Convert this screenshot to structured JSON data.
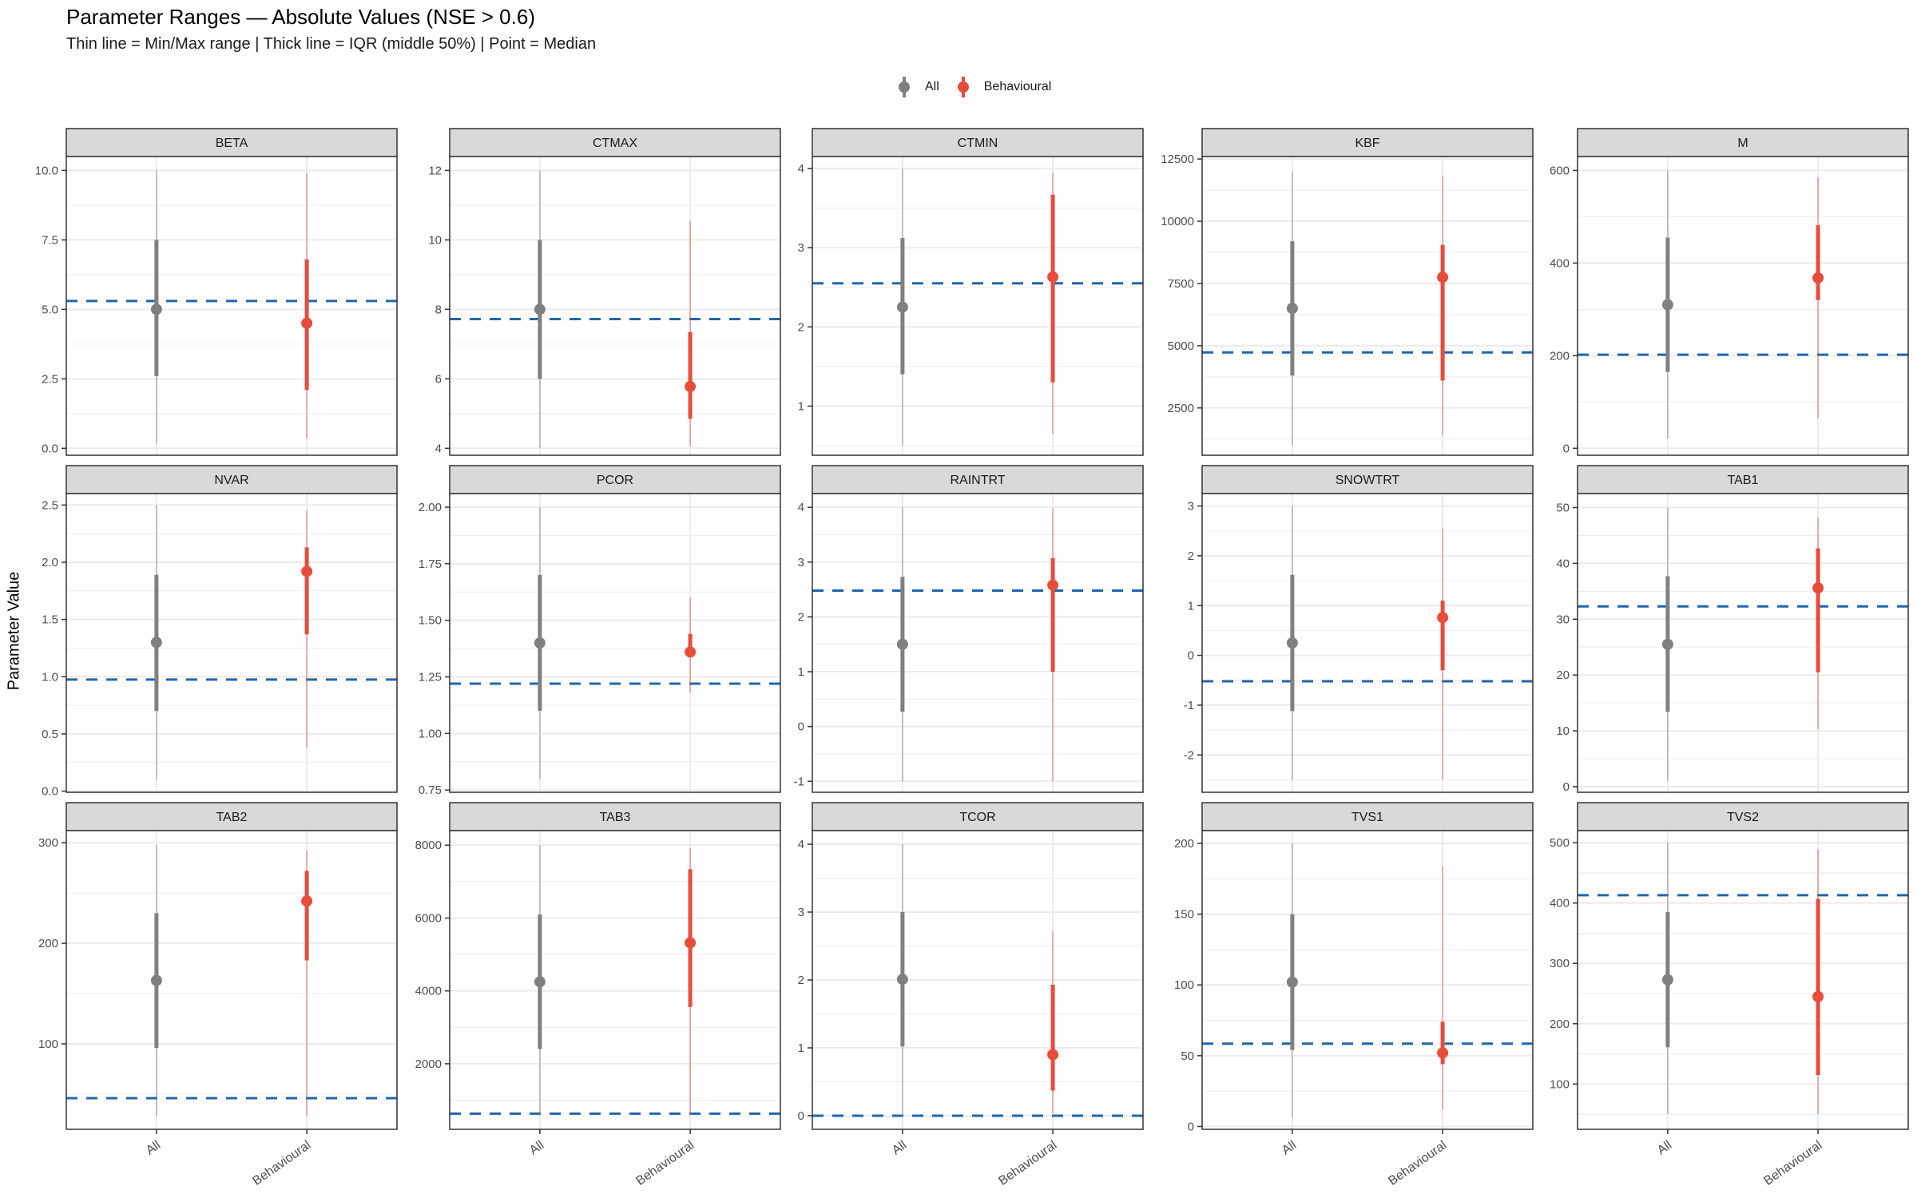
{
  "chart_data": {
    "type": "range-dot",
    "title": "Parameter Ranges — Absolute Values (NSE > 0.6)",
    "subtitle": "Thin line = Min/Max range | Thick line = IQR (middle 50%) | Point = Median",
    "ylabel": "Parameter Value",
    "xlabel": "",
    "categories": [
      "All",
      "Behavioural"
    ],
    "legend": {
      "position": "top",
      "entries": [
        {
          "label": "All",
          "color": "#808080"
        },
        {
          "label": "Behavioural",
          "color": "#E74C3C"
        }
      ]
    },
    "colors": {
      "All": "#808080",
      "Behavioural": "#E74C3C",
      "reference": "#2166AC",
      "strip": "#D9D9D9",
      "grid": "#EBEBEB"
    },
    "grid": true,
    "reference_line": "dashed",
    "panels": [
      {
        "name": "BETA",
        "ylim": [
          -0.25,
          10.5
        ],
        "ticks": [
          0,
          2.5,
          5,
          7.5,
          10
        ],
        "tick_labels": [
          "0.0",
          "2.5",
          "5.0",
          "7.5",
          "10.0"
        ],
        "reference": 5.3,
        "series": {
          "All": {
            "min": 0.15,
            "q1": 2.6,
            "median": 5.0,
            "q3": 7.5,
            "max": 10.0
          },
          "Behavioural": {
            "min": 0.35,
            "q1": 2.1,
            "median": 4.5,
            "q3": 6.8,
            "max": 9.9
          }
        }
      },
      {
        "name": "CTMAX",
        "ylim": [
          3.8,
          12.4
        ],
        "ticks": [
          4,
          6,
          8,
          10,
          12
        ],
        "tick_labels": [
          "4",
          "6",
          "8",
          "10",
          "12"
        ],
        "reference": 7.72,
        "series": {
          "All": {
            "min": 4.0,
            "q1": 6.0,
            "median": 8.0,
            "q3": 10.0,
            "max": 12.0
          },
          "Behavioural": {
            "min": 4.05,
            "q1": 4.85,
            "median": 5.78,
            "q3": 7.35,
            "max": 10.55
          }
        }
      },
      {
        "name": "CTMIN",
        "ylim": [
          0.38,
          4.15
        ],
        "ticks": [
          1,
          2,
          3,
          4
        ],
        "tick_labels": [
          "1",
          "2",
          "3",
          "4"
        ],
        "reference": 2.55,
        "series": {
          "All": {
            "min": 0.5,
            "q1": 1.4,
            "median": 2.25,
            "q3": 3.12,
            "max": 4.0
          },
          "Behavioural": {
            "min": 0.65,
            "q1": 1.3,
            "median": 2.63,
            "q3": 3.67,
            "max": 3.94
          }
        }
      },
      {
        "name": "KBF",
        "ylim": [
          600,
          12600
        ],
        "ticks": [
          2500,
          5000,
          7500,
          10000,
          12500
        ],
        "tick_labels": [
          "2500",
          "5000",
          "7500",
          "10000",
          "12500"
        ],
        "reference": 4730,
        "series": {
          "All": {
            "min": 1000,
            "q1": 3800,
            "median": 6500,
            "q3": 9200,
            "max": 12000
          },
          "Behavioural": {
            "min": 1400,
            "q1": 3600,
            "median": 7750,
            "q3": 9050,
            "max": 11800
          }
        }
      },
      {
        "name": "M",
        "ylim": [
          -15,
          630
        ],
        "ticks": [
          0,
          200,
          400,
          600
        ],
        "tick_labels": [
          "0",
          "200",
          "400",
          "600"
        ],
        "reference": 202,
        "series": {
          "All": {
            "min": 20,
            "q1": 165,
            "median": 310,
            "q3": 455,
            "max": 600
          },
          "Behavioural": {
            "min": 65,
            "q1": 320,
            "median": 368,
            "q3": 482,
            "max": 585
          }
        }
      },
      {
        "name": "NVAR",
        "ylim": [
          -0.01,
          2.6
        ],
        "ticks": [
          0,
          0.5,
          1,
          1.5,
          2,
          2.5
        ],
        "tick_labels": [
          "0.0",
          "0.5",
          "1.0",
          "1.5",
          "2.0",
          "2.5"
        ],
        "reference": 0.975,
        "series": {
          "All": {
            "min": 0.1,
            "q1": 0.7,
            "median": 1.3,
            "q3": 1.89,
            "max": 2.5
          },
          "Behavioural": {
            "min": 0.38,
            "q1": 1.37,
            "median": 1.92,
            "q3": 2.13,
            "max": 2.45
          }
        }
      },
      {
        "name": "PCOR",
        "ylim": [
          0.74,
          2.06
        ],
        "ticks": [
          0.75,
          1,
          1.25,
          1.5,
          1.75,
          2
        ],
        "tick_labels": [
          "0.75",
          "1.00",
          "1.25",
          "1.50",
          "1.75",
          "2.00"
        ],
        "reference": 1.22,
        "series": {
          "All": {
            "min": 0.8,
            "q1": 1.1,
            "median": 1.4,
            "q3": 1.7,
            "max": 2.0
          },
          "Behavioural": {
            "min": 1.18,
            "q1": 1.35,
            "median": 1.36,
            "q3": 1.44,
            "max": 1.6
          }
        }
      },
      {
        "name": "RAINTRT",
        "ylim": [
          -1.2,
          4.25
        ],
        "ticks": [
          -1,
          0,
          1,
          2,
          3,
          4
        ],
        "tick_labels": [
          "-1",
          "0",
          "1",
          "2",
          "3",
          "4"
        ],
        "reference": 2.48,
        "series": {
          "All": {
            "min": -1.0,
            "q1": 0.27,
            "median": 1.5,
            "q3": 2.73,
            "max": 4.0
          },
          "Behavioural": {
            "min": -1.0,
            "q1": 1.0,
            "median": 2.58,
            "q3": 3.07,
            "max": 3.98
          }
        }
      },
      {
        "name": "SNOWTRT",
        "ylim": [
          -2.75,
          3.25
        ],
        "ticks": [
          -2,
          -1,
          0,
          1,
          2,
          3
        ],
        "tick_labels": [
          "-2",
          "-1",
          "0",
          "1",
          "2",
          "3"
        ],
        "reference": -0.52,
        "series": {
          "All": {
            "min": -2.5,
            "q1": -1.12,
            "median": 0.25,
            "q3": 1.62,
            "max": 3.0
          },
          "Behavioural": {
            "min": -2.5,
            "q1": -0.3,
            "median": 0.76,
            "q3": 1.1,
            "max": 2.55
          }
        }
      },
      {
        "name": "TAB1",
        "ylim": [
          -1,
          52.5
        ],
        "ticks": [
          0,
          10,
          20,
          30,
          40,
          50
        ],
        "tick_labels": [
          "0",
          "10",
          "20",
          "30",
          "40",
          "50"
        ],
        "reference": 32.3,
        "series": {
          "All": {
            "min": 1,
            "q1": 13.4,
            "median": 25.5,
            "q3": 37.7,
            "max": 50
          },
          "Behavioural": {
            "min": 10.3,
            "q1": 20.5,
            "median": 35.6,
            "q3": 42.7,
            "max": 48.2
          }
        }
      },
      {
        "name": "TAB2",
        "ylim": [
          15,
          312
        ],
        "ticks": [
          100,
          200,
          300
        ],
        "tick_labels": [
          "100",
          "200",
          "300"
        ],
        "reference": 46,
        "series": {
          "All": {
            "min": 28,
            "q1": 96,
            "median": 163,
            "q3": 230,
            "max": 298
          },
          "Behavioural": {
            "min": 28,
            "q1": 183,
            "median": 242,
            "q3": 272,
            "max": 292
          }
        }
      },
      {
        "name": "TAB3",
        "ylim": [
          200,
          8400
        ],
        "ticks": [
          2000,
          4000,
          6000,
          8000
        ],
        "tick_labels": [
          "2000",
          "4000",
          "6000",
          "8000"
        ],
        "reference": 630,
        "series": {
          "All": {
            "min": 600,
            "q1": 2400,
            "median": 4250,
            "q3": 6100,
            "max": 8000
          },
          "Behavioural": {
            "min": 600,
            "q1": 3560,
            "median": 5320,
            "q3": 7340,
            "max": 7920
          }
        }
      },
      {
        "name": "TCOR",
        "ylim": [
          -0.2,
          4.2
        ],
        "ticks": [
          0,
          1,
          2,
          3,
          4
        ],
        "tick_labels": [
          "0",
          "1",
          "2",
          "3",
          "4"
        ],
        "reference": 0.0,
        "series": {
          "All": {
            "min": 0.0,
            "q1": 1.02,
            "median": 2.01,
            "q3": 3.0,
            "max": 4.0
          },
          "Behavioural": {
            "min": 0.03,
            "q1": 0.37,
            "median": 0.9,
            "q3": 1.93,
            "max": 2.72
          }
        }
      },
      {
        "name": "TVS1",
        "ylim": [
          -2,
          209
        ],
        "ticks": [
          0,
          50,
          100,
          150,
          200
        ],
        "tick_labels": [
          "0",
          "50",
          "100",
          "150",
          "200"
        ],
        "reference": 58.5,
        "series": {
          "All": {
            "min": 6,
            "q1": 54,
            "median": 102,
            "q3": 150,
            "max": 200
          },
          "Behavioural": {
            "min": 12,
            "q1": 44,
            "median": 52,
            "q3": 74,
            "max": 184
          }
        }
      },
      {
        "name": "TVS2",
        "ylim": [
          25,
          520
        ],
        "ticks": [
          100,
          200,
          300,
          400,
          500
        ],
        "tick_labels": [
          "100",
          "200",
          "300",
          "400",
          "500"
        ],
        "reference": 413,
        "series": {
          "All": {
            "min": 50,
            "q1": 161,
            "median": 273,
            "q3": 385,
            "max": 500
          },
          "Behavioural": {
            "min": 50,
            "q1": 115,
            "median": 245,
            "q3": 407,
            "max": 489
          }
        }
      }
    ]
  }
}
